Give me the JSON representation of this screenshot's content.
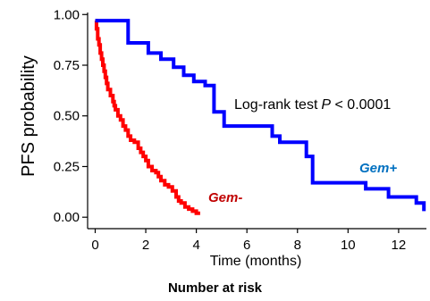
{
  "chart_data": {
    "type": "line",
    "xlabel": "Time (months)",
    "ylabel": "PFS probability",
    "xlim": [
      -0.3,
      13.1
    ],
    "ylim": [
      -0.03,
      1.01
    ],
    "xticks": [
      0,
      2,
      4,
      6,
      8,
      10,
      12
    ],
    "yticks": [
      0.0,
      0.25,
      0.5,
      0.75,
      1.0
    ],
    "ytick_labels": [
      "0.00",
      "0.25",
      "0.50",
      "0.75",
      "1.00"
    ],
    "annotation_text": "Log-rank test",
    "annotation_p": "P",
    "annotation_rest": " < 0.0001",
    "series": [
      {
        "name": "Gem-",
        "color": "#ff0000",
        "label_color": "#c00000",
        "x": [
          0,
          0.05,
          0.1,
          0.15,
          0.2,
          0.25,
          0.3,
          0.35,
          0.4,
          0.45,
          0.5,
          0.6,
          0.7,
          0.75,
          0.8,
          0.9,
          1.0,
          1.1,
          1.2,
          1.3,
          1.4,
          1.55,
          1.7,
          1.8,
          1.9,
          2.0,
          2.1,
          2.25,
          2.4,
          2.5,
          2.6,
          2.75,
          2.9,
          3.05,
          3.2,
          3.3,
          3.4,
          3.55,
          3.7,
          3.85,
          4.0,
          4.15
        ],
        "y": [
          0.97,
          0.93,
          0.88,
          0.85,
          0.81,
          0.78,
          0.75,
          0.72,
          0.69,
          0.66,
          0.63,
          0.6,
          0.57,
          0.55,
          0.53,
          0.5,
          0.48,
          0.45,
          0.43,
          0.4,
          0.38,
          0.37,
          0.34,
          0.32,
          0.3,
          0.28,
          0.25,
          0.23,
          0.22,
          0.2,
          0.18,
          0.16,
          0.15,
          0.13,
          0.1,
          0.08,
          0.07,
          0.05,
          0.04,
          0.03,
          0.02,
          0.02
        ]
      },
      {
        "name": "Gem+",
        "color": "#0000ff",
        "label_color": "#0070c0",
        "x": [
          0,
          1.2,
          1.3,
          2.1,
          2.6,
          3.1,
          3.5,
          3.9,
          4.35,
          4.7,
          5.1,
          6.7,
          7.0,
          7.3,
          7.6,
          8.35,
          8.6,
          9.4,
          10.2,
          10.7,
          11.6,
          12.7,
          13.0
        ],
        "y": [
          0.97,
          0.97,
          0.86,
          0.81,
          0.78,
          0.74,
          0.7,
          0.67,
          0.65,
          0.52,
          0.45,
          0.45,
          0.4,
          0.37,
          0.37,
          0.3,
          0.17,
          0.17,
          0.17,
          0.14,
          0.1,
          0.07,
          0.03
        ]
      }
    ]
  },
  "risk_table": {
    "title": "Number at risk"
  }
}
